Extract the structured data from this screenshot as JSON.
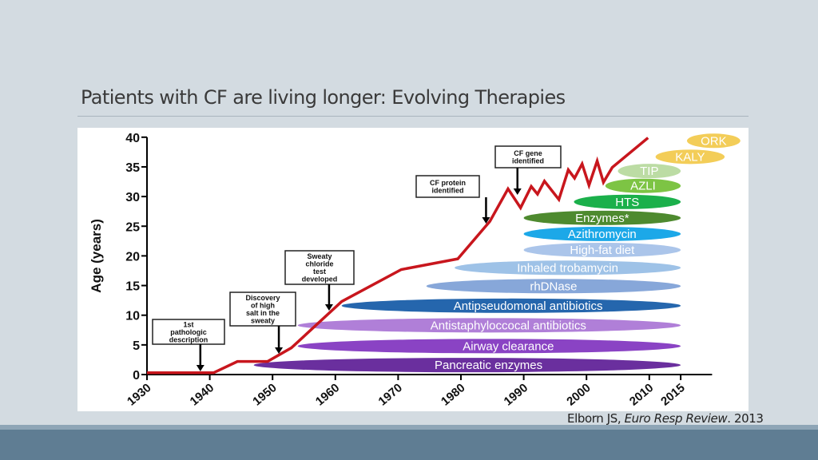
{
  "slide": {
    "title": "Patients with CF are living longer: Evolving Therapies",
    "citation": {
      "authors": "Elborn JS, ",
      "journal": "Euro Resp Review",
      "year": ". 2013"
    }
  },
  "chart_data": {
    "type": "line",
    "ylabel": "Age (years)",
    "xlabel": "",
    "xlim": [
      1930,
      2015
    ],
    "ylim": [
      0,
      40
    ],
    "x_ticks": [
      1930,
      1940,
      1950,
      1960,
      1970,
      1980,
      1990,
      2000,
      2010,
      2015
    ],
    "y_ticks": [
      0,
      5,
      10,
      15,
      20,
      25,
      30,
      35,
      40
    ],
    "grid": false,
    "line_color": "#c8161d",
    "series": [
      {
        "x": [
          1930,
          1940.6,
          1944.4,
          1949.2,
          1953,
          1961,
          1970.5,
          1979.5,
          1984.6,
          1987.5,
          1989.5,
          1991.2,
          1992.2,
          1993.3,
          1995.6,
          1997.1,
          1998.1,
          1999.3,
          2000.4,
          2001.7,
          2002.7,
          2004.1,
          2009.8
        ],
        "y": [
          0.3,
          0.3,
          2.2,
          2.2,
          4.5,
          12.3,
          17.7,
          19.5,
          25.8,
          31.3,
          28.1,
          31.7,
          30.4,
          32.6,
          29.5,
          34.5,
          33.1,
          35.5,
          31.9,
          36,
          32.4,
          34.9,
          39.9
        ]
      }
    ],
    "annotations": [
      {
        "label": [
          "1st",
          "pathologic",
          "description"
        ],
        "year": 1938.5
      },
      {
        "label": [
          "Discovery",
          "of high",
          "salt in the",
          "sweaty"
        ],
        "year": 1951
      },
      {
        "label": [
          "Sweaty",
          "chloride",
          "test",
          "developed"
        ],
        "year": 1959
      },
      {
        "label": [
          "CF protein",
          "identified"
        ],
        "year": 1984
      },
      {
        "label": [
          "CF gene",
          "identified"
        ],
        "year": 1989
      }
    ],
    "therapies": [
      {
        "label": "Pancreatic enzymes",
        "start": 1947,
        "end": 2015,
        "level": 1.6,
        "color": "#6a2f9e"
      },
      {
        "label": "Airway clearance",
        "start": 1954,
        "end": 2015,
        "level": 4.8,
        "color": "#8a43c4"
      },
      {
        "label": "Antistaphyloccocal antibiotics",
        "start": 1954,
        "end": 2015,
        "level": 8.3,
        "color": "#b07fd8"
      },
      {
        "label": "Antipseudomonal antibiotics",
        "start": 1961,
        "end": 2015,
        "level": 11.6,
        "color": "#2566ad"
      },
      {
        "label": "rhDNase",
        "start": 1974.5,
        "end": 2015,
        "level": 14.9,
        "color": "#87a7d9"
      },
      {
        "label": "Inhaled trobamycin",
        "start": 1979,
        "end": 2015,
        "level": 18,
        "color": "#9ec2e7"
      },
      {
        "label": "High-fat diet",
        "start": 1990,
        "end": 2015,
        "level": 21,
        "color": "#abc5ea"
      },
      {
        "label": "Azithromycin",
        "start": 1990,
        "end": 2015,
        "level": 23.7,
        "color": "#1ca8e8"
      },
      {
        "label": "Enzymes*",
        "start": 1990,
        "end": 2015,
        "level": 26.4,
        "color": "#4e8a2f"
      },
      {
        "label": "HTS",
        "start": 1998,
        "end": 2015,
        "level": 29.1,
        "color": "#1bb04b"
      },
      {
        "label": "AZLI",
        "start": 2003,
        "end": 2015,
        "level": 31.8,
        "color": "#7dc444"
      },
      {
        "label": "TIP",
        "start": 2005,
        "end": 2015,
        "level": 34.3,
        "color": "#bcdca4"
      },
      {
        "label": "KALY",
        "start": 2011,
        "end": 2022,
        "level": 36.7,
        "color": "#f3cd58"
      },
      {
        "label": "ORK",
        "start": 2016,
        "end": 2024.5,
        "level": 39.4,
        "color": "#f3cd58"
      }
    ]
  }
}
